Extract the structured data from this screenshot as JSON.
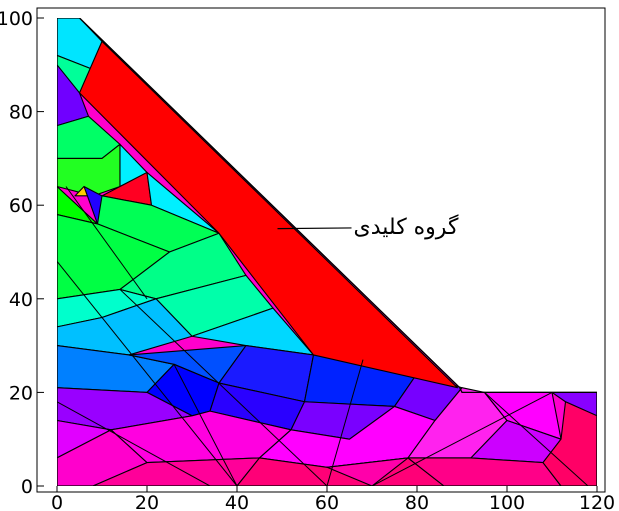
{
  "figure": {
    "annotation": {
      "text": "گروه کلیدی",
      "point": [
        49,
        55
      ],
      "text_anchor": [
        65,
        56
      ]
    },
    "key_group_color": "#ff0000"
  },
  "axes": {
    "xlim": [
      0,
      120
    ],
    "ylim": [
      0,
      100
    ],
    "xticks": [
      0,
      20,
      40,
      60,
      80,
      100,
      120
    ],
    "yticks": [
      0,
      20,
      40,
      60,
      80,
      100
    ],
    "frame": true,
    "grid": false
  },
  "chart_data": {
    "type": "other",
    "description_unit": "data coordinates (x: 0–120, y: 0–100)",
    "boundary": [
      [
        0,
        0
      ],
      [
        120,
        0
      ],
      [
        120,
        20
      ],
      [
        90,
        20
      ],
      [
        89.5,
        21
      ],
      [
        5,
        100
      ],
      [
        0,
        100
      ]
    ],
    "regions": [
      {
        "name": "key-group",
        "color": "#ff0000",
        "points": [
          [
            10,
            95
          ],
          [
            5,
            84
          ],
          [
            36,
            54
          ],
          [
            57,
            28
          ],
          [
            89,
            21
          ]
        ]
      },
      {
        "name": "region-top",
        "color": "#00e5ff",
        "points": [
          [
            0,
            100
          ],
          [
            5,
            100
          ],
          [
            10,
            95
          ],
          [
            8,
            89
          ],
          [
            0,
            92
          ]
        ]
      },
      {
        "name": "region-top2",
        "color": "#00ff99",
        "points": [
          [
            0,
            92
          ],
          [
            8,
            89
          ],
          [
            5,
            84
          ],
          [
            0,
            85
          ]
        ]
      },
      {
        "name": "region-purple-top",
        "color": "#7000ff",
        "points": [
          [
            0,
            90
          ],
          [
            0,
            77
          ],
          [
            7,
            79
          ],
          [
            5,
            84
          ]
        ]
      },
      {
        "name": "region-green-1",
        "color": "#00ff66",
        "points": [
          [
            0,
            77
          ],
          [
            7,
            79
          ],
          [
            14,
            73
          ],
          [
            10,
            70
          ],
          [
            0,
            70
          ]
        ]
      },
      {
        "name": "region-green-2",
        "color": "#22ff22",
        "points": [
          [
            0,
            70
          ],
          [
            10,
            70
          ],
          [
            14,
            73
          ],
          [
            14,
            64
          ],
          [
            8,
            62
          ],
          [
            0,
            64
          ]
        ]
      },
      {
        "name": "region-cyan-upper",
        "color": "#00f0ff",
        "points": [
          [
            14,
            73
          ],
          [
            20,
            67
          ],
          [
            14,
            64
          ]
        ]
      },
      {
        "name": "region-red-small",
        "color": "#ff0022",
        "points": [
          [
            14,
            64
          ],
          [
            20,
            67
          ],
          [
            21,
            60
          ],
          [
            10,
            62
          ]
        ]
      },
      {
        "name": "region-yellow-small",
        "color": "#ffcc00",
        "points": [
          [
            4,
            62
          ],
          [
            8,
            62
          ],
          [
            6,
            64
          ]
        ]
      },
      {
        "name": "region-cyan-mid",
        "color": "#00f0ff",
        "points": [
          [
            20,
            67
          ],
          [
            36,
            54
          ],
          [
            21,
            60
          ]
        ]
      },
      {
        "name": "region-blue-small",
        "color": "#2200ff",
        "points": [
          [
            6,
            64
          ],
          [
            10,
            62
          ],
          [
            14,
            60
          ],
          [
            9,
            56
          ]
        ]
      },
      {
        "name": "region-green-3",
        "color": "#00ff00",
        "points": [
          [
            0,
            64
          ],
          [
            9,
            56
          ],
          [
            0,
            58
          ]
        ]
      },
      {
        "name": "region-green-4",
        "color": "#00ff55",
        "points": [
          [
            10,
            62
          ],
          [
            21,
            60
          ],
          [
            36,
            54
          ],
          [
            25,
            50
          ],
          [
            9,
            56
          ]
        ]
      },
      {
        "name": "region-green-5",
        "color": "#00ff44",
        "points": [
          [
            0,
            58
          ],
          [
            9,
            56
          ],
          [
            25,
            50
          ],
          [
            14,
            42
          ],
          [
            0,
            40
          ]
        ]
      },
      {
        "name": "region-green-6",
        "color": "#00ff88",
        "points": [
          [
            25,
            50
          ],
          [
            36,
            54
          ],
          [
            42,
            45
          ],
          [
            22,
            40
          ],
          [
            14,
            42
          ]
        ]
      },
      {
        "name": "region-teal-1",
        "color": "#00ffaa",
        "points": [
          [
            22,
            40
          ],
          [
            42,
            45
          ],
          [
            48,
            38
          ],
          [
            30,
            32
          ]
        ]
      },
      {
        "name": "region-teal-2",
        "color": "#00ffcc",
        "points": [
          [
            0,
            40
          ],
          [
            14,
            42
          ],
          [
            22,
            40
          ],
          [
            10,
            36
          ],
          [
            0,
            34
          ]
        ]
      },
      {
        "name": "region-skyblue-1",
        "color": "#00c0ff",
        "points": [
          [
            10,
            36
          ],
          [
            22,
            40
          ],
          [
            30,
            32
          ],
          [
            16,
            28
          ],
          [
            0,
            30
          ],
          [
            0,
            34
          ]
        ]
      },
      {
        "name": "region-skyblue-2",
        "color": "#00d8ff",
        "points": [
          [
            30,
            32
          ],
          [
            48,
            38
          ],
          [
            57,
            28
          ],
          [
            42,
            30
          ]
        ]
      },
      {
        "name": "region-blue-1",
        "color": "#0080ff",
        "points": [
          [
            0,
            30
          ],
          [
            16,
            28
          ],
          [
            26,
            26
          ],
          [
            20,
            20
          ],
          [
            0,
            21
          ]
        ]
      },
      {
        "name": "region-blue-2",
        "color": "#0050ff",
        "points": [
          [
            16,
            28
          ],
          [
            42,
            30
          ],
          [
            36,
            22
          ],
          [
            26,
            26
          ]
        ]
      },
      {
        "name": "region-blue-3",
        "color": "#1a1aff",
        "points": [
          [
            42,
            30
          ],
          [
            57,
            28
          ],
          [
            55,
            18
          ],
          [
            36,
            22
          ]
        ]
      },
      {
        "name": "region-blue-4",
        "color": "#0000ff",
        "points": [
          [
            20,
            20
          ],
          [
            26,
            26
          ],
          [
            36,
            22
          ],
          [
            34,
            16
          ],
          [
            30,
            15
          ]
        ]
      },
      {
        "name": "region-blue-5",
        "color": "#2a00ff",
        "points": [
          [
            34,
            16
          ],
          [
            36,
            22
          ],
          [
            55,
            18
          ],
          [
            52,
            12
          ]
        ]
      },
      {
        "name": "region-blue-6",
        "color": "#0022ff",
        "points": [
          [
            57,
            28
          ],
          [
            80,
            24
          ],
          [
            75,
            17
          ],
          [
            55,
            18
          ]
        ]
      },
      {
        "name": "region-violet-1",
        "color": "#7a00ff",
        "points": [
          [
            55,
            18
          ],
          [
            75,
            17
          ],
          [
            65,
            10
          ],
          [
            52,
            12
          ]
        ]
      },
      {
        "name": "region-violet-2",
        "color": "#9900ff",
        "points": [
          [
            0,
            21
          ],
          [
            20,
            20
          ],
          [
            30,
            15
          ],
          [
            12,
            12
          ],
          [
            0,
            14
          ]
        ]
      },
      {
        "name": "region-violet-3",
        "color": "#7700ff",
        "points": [
          [
            80,
            24
          ],
          [
            90,
            21
          ],
          [
            84,
            14
          ],
          [
            75,
            17
          ]
        ]
      },
      {
        "name": "region-magenta-1",
        "color": "#e100ff",
        "points": [
          [
            0,
            14
          ],
          [
            12,
            12
          ],
          [
            0,
            6
          ]
        ]
      },
      {
        "name": "region-magenta-2",
        "color": "#ff00e0",
        "points": [
          [
            12,
            12
          ],
          [
            30,
            15
          ],
          [
            34,
            16
          ],
          [
            52,
            12
          ],
          [
            45,
            6
          ],
          [
            20,
            5
          ]
        ]
      },
      {
        "name": "region-magenta-3",
        "color": "#ff00cc",
        "points": [
          [
            0,
            6
          ],
          [
            12,
            12
          ],
          [
            20,
            5
          ],
          [
            8,
            0
          ],
          [
            0,
            0
          ]
        ]
      },
      {
        "name": "region-magenta-4",
        "color": "#ff00ff",
        "points": [
          [
            52,
            12
          ],
          [
            65,
            10
          ],
          [
            75,
            17
          ],
          [
            84,
            14
          ],
          [
            78,
            6
          ],
          [
            60,
            4
          ],
          [
            45,
            6
          ]
        ]
      },
      {
        "name": "region-magenta-5",
        "color": "#ff22ee",
        "points": [
          [
            84,
            14
          ],
          [
            90,
            21
          ],
          [
            95,
            20
          ],
          [
            100,
            14
          ],
          [
            92,
            6
          ],
          [
            78,
            6
          ]
        ]
      },
      {
        "name": "region-magenta-6",
        "color": "#ff00ff",
        "points": [
          [
            95,
            20
          ],
          [
            110,
            20
          ],
          [
            112,
            10
          ],
          [
            100,
            14
          ]
        ]
      },
      {
        "name": "region-violet-4",
        "color": "#8800ff",
        "points": [
          [
            110,
            20
          ],
          [
            120,
            20
          ],
          [
            120,
            15
          ],
          [
            113,
            18
          ]
        ]
      },
      {
        "name": "region-violet-5",
        "color": "#cc00ff",
        "points": [
          [
            100,
            14
          ],
          [
            112,
            10
          ],
          [
            108,
            5
          ],
          [
            92,
            6
          ]
        ]
      },
      {
        "name": "region-pink-1",
        "color": "#ff0099",
        "points": [
          [
            8,
            0
          ],
          [
            20,
            5
          ],
          [
            45,
            6
          ],
          [
            40,
            0
          ]
        ]
      },
      {
        "name": "region-pink-2",
        "color": "#ff0077",
        "points": [
          [
            40,
            0
          ],
          [
            45,
            6
          ],
          [
            60,
            4
          ],
          [
            78,
            6
          ],
          [
            86,
            0
          ]
        ]
      },
      {
        "name": "region-pink-3",
        "color": "#ff0088",
        "points": [
          [
            78,
            6
          ],
          [
            92,
            6
          ],
          [
            108,
            5
          ],
          [
            112,
            0
          ],
          [
            86,
            0
          ]
        ]
      },
      {
        "name": "region-pink-4",
        "color": "#ff0066",
        "points": [
          [
            112,
            10
          ],
          [
            113,
            18
          ],
          [
            120,
            15
          ],
          [
            120,
            0
          ],
          [
            112,
            0
          ],
          [
            108,
            5
          ]
        ]
      },
      {
        "name": "region-pink-5",
        "color": "#ff00aa",
        "points": [
          [
            60,
            4
          ],
          [
            78,
            6
          ],
          [
            70,
            0
          ]
        ]
      }
    ],
    "extra_lines": [
      [
        [
          2,
          64
        ],
        [
          20,
          40
        ]
      ],
      [
        [
          0,
          48
        ],
        [
          40,
          0
        ]
      ],
      [
        [
          14,
          42
        ],
        [
          60,
          0
        ]
      ],
      [
        [
          0,
          18
        ],
        [
          34,
          0
        ]
      ],
      [
        [
          60,
          0
        ],
        [
          68,
          27
        ]
      ],
      [
        [
          70,
          0
        ],
        [
          110,
          20
        ]
      ],
      [
        [
          26,
          26
        ],
        [
          40,
          0
        ]
      ],
      [
        [
          95,
          20
        ],
        [
          118,
          0
        ]
      ]
    ]
  }
}
